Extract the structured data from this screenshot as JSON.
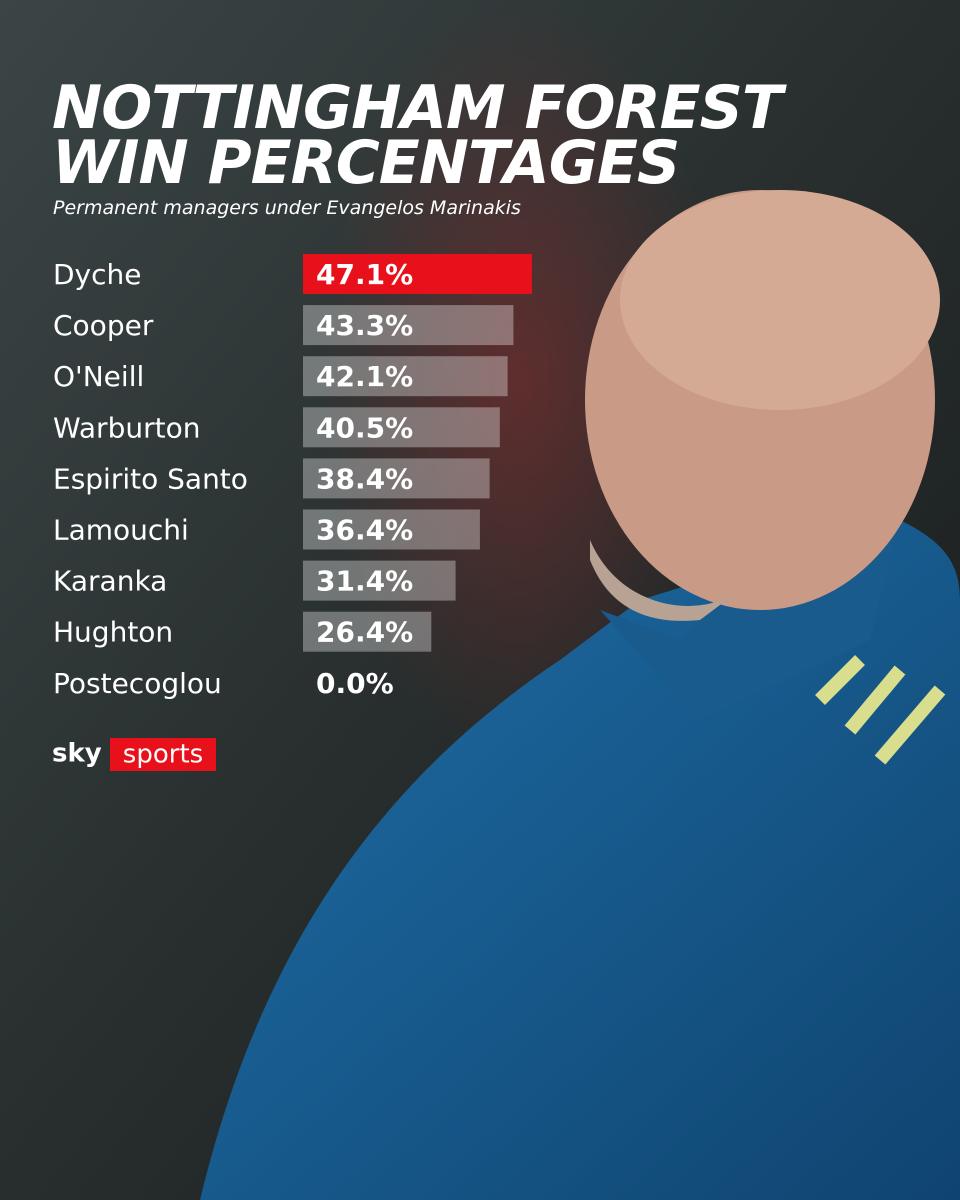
{
  "chart_data": {
    "type": "bar",
    "orientation": "horizontal",
    "title": [
      "NOTTINGHAM FOREST",
      "WIN PERCENTAGES"
    ],
    "subtitle": "Permanent managers under Evangelos Marinakis",
    "categories": [
      "Dyche",
      "Cooper",
      "O'Neill",
      "Warburton",
      "Espirito Santo",
      "Lamouchi",
      "Karanka",
      "Hughton",
      "Postecoglou"
    ],
    "values": [
      47.1,
      43.3,
      42.1,
      40.5,
      38.4,
      36.4,
      31.4,
      26.4,
      0.0
    ],
    "value_labels": [
      "47.1%",
      "43.3%",
      "42.1%",
      "40.5%",
      "38.4%",
      "36.4%",
      "31.4%",
      "26.4%",
      "0.0%"
    ],
    "colors": [
      "#e8101a",
      "#ffffff55",
      "#ffffff55",
      "#ffffff55",
      "#ffffff55",
      "#ffffff55",
      "#ffffff55",
      "#ffffff55",
      "#ffffff55"
    ],
    "brand": [
      "sky",
      "sports"
    ]
  }
}
